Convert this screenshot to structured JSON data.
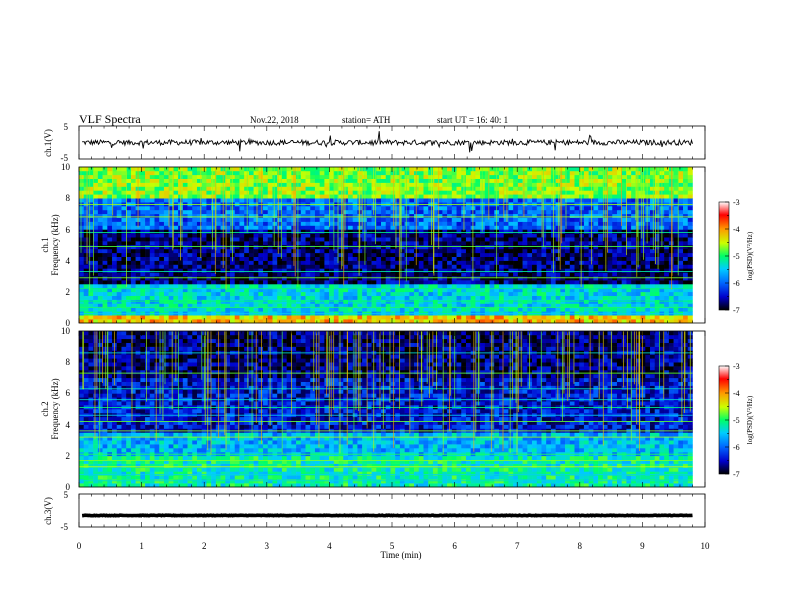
{
  "header": {
    "title": "VLF  Spectra",
    "date": "Nov.22, 2018",
    "station": "station= ATH",
    "start_ut": "start  UT  =    16: 40: 1"
  },
  "panels": {
    "ch1_wave_label": "ch.1(V)",
    "ch1_spec_label_line1": "ch.1",
    "ch1_spec_label_line2": "Frequency  (kHz)",
    "ch2_spec_label_line1": "ch.2",
    "ch2_spec_label_line2": "Frequency  (kHz)",
    "ch3_wave_label": "ch.3(V)"
  },
  "colorbar": {
    "label": "log(PSD)(V²/Hz)",
    "ticks": [
      "-3",
      "-4",
      "-5",
      "-6",
      "-7"
    ],
    "stops": [
      "#000000",
      "#0000cc",
      "#0066ff",
      "#00ccff",
      "#00ff66",
      "#ccff00",
      "#ff9900",
      "#ff0000",
      "#ffffff"
    ]
  },
  "chart_data": [
    {
      "type": "line",
      "name": "ch.1 waveform",
      "ylabel": "ch.1(V)",
      "ylim": [
        -5,
        5
      ],
      "y_ticks": [
        "5",
        "-5"
      ],
      "xlim": [
        0,
        10
      ],
      "baseline": 0,
      "amplitude_typical": 1.0
    },
    {
      "type": "heatmap",
      "name": "ch.1 spectrogram",
      "ylabel": "Frequency  (kHz)",
      "ylim": [
        0,
        10
      ],
      "y_ticks": [
        "0",
        "2",
        "4",
        "6",
        "8",
        "10"
      ],
      "xlim": [
        0,
        9.8
      ],
      "colorbar_range": [
        -7,
        -3
      ],
      "bands": [
        {
          "from": 0,
          "to": 0.5,
          "level": -4.2
        },
        {
          "from": 0.5,
          "to": 2.5,
          "level": -5.4
        },
        {
          "from": 2.5,
          "to": 6,
          "level": -6.7
        },
        {
          "from": 6,
          "to": 8,
          "level": -6.0
        },
        {
          "from": 8,
          "to": 10,
          "level": -4.7
        }
      ],
      "tones_khz": [
        0.6,
        1.0,
        1.4,
        2.2,
        2.9,
        3.3,
        4.9,
        5.8,
        6.8,
        7.6
      ]
    },
    {
      "type": "heatmap",
      "name": "ch.2 spectrogram",
      "ylabel": "Frequency  (kHz)",
      "ylim": [
        0,
        10
      ],
      "y_ticks": [
        "0",
        "2",
        "4",
        "6",
        "8",
        "10"
      ],
      "xlim": [
        0,
        9.8
      ],
      "colorbar_range": [
        -7,
        -3
      ],
      "bands": [
        {
          "from": 0,
          "to": 2,
          "level": -5.2
        },
        {
          "from": 2,
          "to": 3.5,
          "level": -5.6
        },
        {
          "from": 3.5,
          "to": 7,
          "level": -6.4
        },
        {
          "from": 7,
          "to": 10,
          "level": -6.7
        }
      ],
      "tones_khz": [
        0.4,
        0.8,
        1.3,
        1.7,
        2.1,
        3.2,
        3.6,
        4.2,
        4.6,
        5.1,
        5.6,
        6.3,
        7.3,
        8.6
      ]
    },
    {
      "type": "line",
      "name": "ch.3 waveform",
      "ylabel": "ch.3(V)",
      "ylim": [
        -5,
        5
      ],
      "y_ticks": [
        "5",
        "-5"
      ],
      "xlim": [
        0,
        10
      ],
      "x_ticks": [
        "0",
        "1",
        "2",
        "3",
        "4",
        "5",
        "6",
        "7",
        "8",
        "9",
        "10"
      ],
      "xlabel": "Time  (min)",
      "baseline": -1.5,
      "amplitude_typical": 0.3
    }
  ]
}
